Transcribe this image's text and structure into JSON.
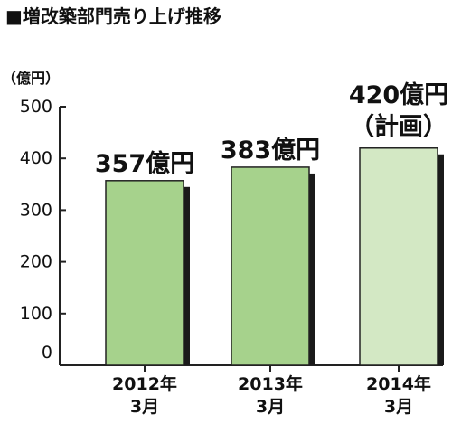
{
  "chart_data": {
    "type": "bar",
    "title": "■増改築部門売り上げ推移",
    "unit_label": "（億円）",
    "categories": [
      {
        "line1": "2012年",
        "line2": "3月"
      },
      {
        "line1": "2013年",
        "line2": "3月"
      },
      {
        "line1": "2014年",
        "line2": "3月"
      }
    ],
    "values": [
      357,
      383,
      420
    ],
    "data_labels": [
      {
        "line1": "357億円",
        "line2": ""
      },
      {
        "line1": "383億円",
        "line2": ""
      },
      {
        "line1": "420億円",
        "line2": "（計画）"
      }
    ],
    "ylim": [
      0,
      500
    ],
    "yticks": [
      0,
      100,
      200,
      300,
      400,
      500
    ],
    "grid": false,
    "colors": {
      "bars": [
        "#a6d28c",
        "#a6d28c",
        "#d3e8c4"
      ],
      "bar_border": "#222222",
      "bar_shadow": "#1a1a1a",
      "axis": "#222222"
    }
  }
}
